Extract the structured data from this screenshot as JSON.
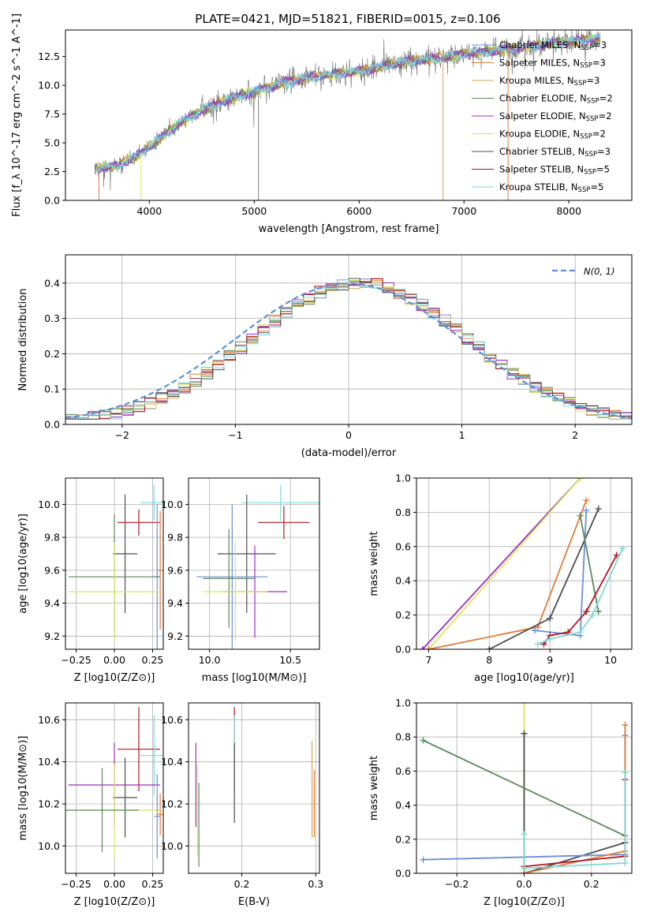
{
  "figure_title": "PLATE=0421, MJD=51821, FIBERID=0015, z=0.106",
  "colors": {
    "chabrier_miles": "#6a8fd8",
    "salpeter_miles": "#e07b39",
    "kroupa_miles": "#d4a64a",
    "chabrier_elodie": "#5a8a5a",
    "salpeter_elodie": "#a32cc4",
    "kroupa_elodie": "#d8e85a",
    "chabrier_stelib": "#4d4d4d",
    "salpeter_stelib": "#b0171f",
    "kroupa_stelib": "#7fd8d8",
    "data": "#7f7f7f",
    "normal": "#5b8fd8"
  },
  "chart_data": [
    {
      "id": "spectrum",
      "type": "line",
      "title": "PLATE=0421, MJD=51821, FIBERID=0015, z=0.106",
      "xlabel": "wavelength [Angstrom, rest frame]",
      "ylabel": "Flux [f_λ 10^-17 erg cm^-2 s^-1 A^-1]",
      "xlim": [
        3200,
        8600
      ],
      "ylim": [
        0,
        14.8
      ],
      "xticks": [
        4000,
        5000,
        6000,
        7000,
        8000
      ],
      "yticks": [
        0.0,
        2.5,
        5.0,
        7.5,
        10.0,
        12.5
      ],
      "grid": false,
      "legend_position": "top-right",
      "legend": [
        "Chabrier MILES, N_SSP=3",
        "Salpeter MILES, N_SSP=3",
        "Kroupa MILES, N_SSP=3",
        "Chabrier ELODIE, N_SSP=2",
        "Salpeter ELODIE, N_SSP=2",
        "Kroupa ELODIE, N_SSP=2",
        "Chabrier STELIB, N_SSP=3",
        "Salpeter STELIB, N_SSP=5",
        "Kroupa STELIB, N_SSP=5"
      ],
      "continuum_x": [
        3500,
        3700,
        3900,
        4100,
        4300,
        4500,
        4700,
        4900,
        5100,
        5300,
        5500,
        5700,
        5900,
        6100,
        6300,
        6500,
        6700,
        6900,
        7100,
        7300,
        7500,
        7700,
        7900,
        8100,
        8300
      ],
      "continuum_y": [
        2.8,
        3.0,
        4.0,
        5.3,
        6.8,
        7.8,
        8.6,
        9.2,
        9.7,
        10.3,
        10.6,
        10.9,
        11.1,
        11.4,
        11.8,
        12.1,
        12.3,
        12.6,
        12.8,
        13.0,
        13.2,
        13.5,
        13.7,
        13.9,
        14.1
      ]
    },
    {
      "id": "residuals",
      "type": "line",
      "xlabel": "(data-model)/error",
      "ylabel": "Normed distribution",
      "xlim": [
        -2.5,
        2.5
      ],
      "ylim": [
        0,
        0.48
      ],
      "xticks": [
        -2,
        -1,
        0,
        1,
        2
      ],
      "yticks": [
        0.0,
        0.1,
        0.2,
        0.3,
        0.4
      ],
      "grid": true,
      "legend_position": "top-right",
      "legend": [
        "N(0,1)"
      ]
    },
    {
      "id": "age_vs_Z",
      "type": "scatter",
      "xlabel": "Z [log10(Z/Z⊙)]",
      "ylabel": "age [log10(age/yr)]",
      "xlim": [
        -0.32,
        0.32
      ],
      "ylim": [
        9.12,
        10.16
      ],
      "xticks": [
        -0.25,
        0.0,
        0.25
      ],
      "yticks": [
        9.2,
        9.4,
        9.6,
        9.8,
        10.0
      ],
      "grid": true,
      "points": [
        {
          "x": 0.26,
          "y": 10.01,
          "xerr": 0.09,
          "yerr": 0.11,
          "c": "kroupa_stelib"
        },
        {
          "x": 0.16,
          "y": 9.89,
          "xerr": 0.14,
          "yerr": 0.08,
          "c": "salpeter_stelib"
        },
        {
          "x": 0.07,
          "y": 9.7,
          "xerr": 0.08,
          "yerr": 0.36,
          "c": "chabrier_stelib"
        },
        {
          "x": 0.28,
          "y": 9.56,
          "xerr": 0.02,
          "yerr": 0.44,
          "c": "chabrier_miles"
        },
        {
          "x": 0.3,
          "y": 9.6,
          "xerr": 0.02,
          "yerr": 0.36,
          "c": "salpeter_miles"
        },
        {
          "x": 0.0,
          "y": 9.56,
          "xerr": 0.3,
          "yerr": 0.38,
          "c": "chabrier_elodie"
        },
        {
          "x": 0.0,
          "y": 9.47,
          "xerr": 0.3,
          "yerr": 0.3,
          "c": "kroupa_elodie"
        }
      ]
    },
    {
      "id": "age_vs_mass",
      "type": "scatter",
      "xlabel": "mass [log10(M/M⊙)]",
      "ylabel": "",
      "xlim": [
        9.87,
        10.68
      ],
      "ylim": [
        9.12,
        10.16
      ],
      "xticks": [
        10.0,
        10.5
      ],
      "yticks": [
        9.2,
        9.4,
        9.6,
        9.8,
        10.0
      ],
      "grid": true,
      "points": [
        {
          "x": 10.44,
          "y": 10.01,
          "xerr": 0.24,
          "yerr": 0.11,
          "c": "kroupa_stelib"
        },
        {
          "x": 10.46,
          "y": 9.89,
          "xerr": 0.16,
          "yerr": 0.1,
          "c": "salpeter_stelib"
        },
        {
          "x": 10.23,
          "y": 9.7,
          "xerr": 0.18,
          "yerr": 0.36,
          "c": "chabrier_stelib"
        },
        {
          "x": 10.14,
          "y": 9.56,
          "xerr": 0.22,
          "yerr": 0.44,
          "c": "chabrier_miles"
        },
        {
          "x": 10.12,
          "y": 9.55,
          "xerr": 0.16,
          "yerr": 0.3,
          "c": "chabrier_elodie"
        },
        {
          "x": 10.28,
          "y": 9.47,
          "xerr": 0.2,
          "yerr": 0.28,
          "c": "salpeter_elodie"
        },
        {
          "x": 10.16,
          "y": 9.47,
          "xerr": 0.2,
          "yerr": 0.3,
          "c": "kroupa_elodie"
        }
      ]
    },
    {
      "id": "weight_vs_age",
      "type": "line",
      "xlabel": "age [log10(age/yr)]",
      "ylabel": "mass weight",
      "xlim": [
        6.8,
        10.35
      ],
      "ylim": [
        0,
        1.0
      ],
      "xticks": [
        7,
        8,
        9,
        10
      ],
      "yticks": [
        0.0,
        0.2,
        0.4,
        0.6,
        0.8,
        1.0
      ],
      "grid": true,
      "series": [
        {
          "c": "salpeter_elodie",
          "x": [
            6.9,
            9.5
          ],
          "y": [
            0.0,
            1.0
          ]
        },
        {
          "c": "kroupa_elodie",
          "x": [
            7.0,
            9.5
          ],
          "y": [
            0.0,
            1.0
          ]
        },
        {
          "c": "salpeter_miles",
          "x": [
            7.0,
            8.8,
            9.6
          ],
          "y": [
            0.0,
            0.13,
            0.87
          ]
        },
        {
          "c": "chabrier_stelib",
          "x": [
            8.0,
            9.0,
            9.8
          ],
          "y": [
            0.0,
            0.18,
            0.82
          ]
        },
        {
          "c": "chabrier_miles",
          "x": [
            8.75,
            9.5,
            9.6
          ],
          "y": [
            0.11,
            0.08,
            0.81
          ]
        },
        {
          "c": "chabrier_elodie",
          "x": [
            9.5,
            9.8
          ],
          "y": [
            0.78,
            0.22
          ]
        },
        {
          "c": "salpeter_stelib",
          "x": [
            8.9,
            9.0,
            9.3,
            9.6,
            10.1
          ],
          "y": [
            0.03,
            0.08,
            0.1,
            0.22,
            0.55
          ]
        },
        {
          "c": "kroupa_stelib",
          "x": [
            8.8,
            9.0,
            9.5,
            9.7,
            10.2
          ],
          "y": [
            0.03,
            0.06,
            0.1,
            0.2,
            0.59
          ]
        }
      ]
    },
    {
      "id": "mass_vs_Z",
      "type": "scatter",
      "xlabel": "Z [log10(Z/Z⊙)]",
      "ylabel": "mass [log10(M/M⊙)]",
      "xlim": [
        -0.32,
        0.32
      ],
      "ylim": [
        9.87,
        10.68
      ],
      "xticks": [
        -0.25,
        0.0,
        0.25
      ],
      "yticks": [
        10.0,
        10.2,
        10.4,
        10.6
      ],
      "grid": true,
      "points": [
        {
          "x": 0.16,
          "y": 10.46,
          "xerr": 0.14,
          "yerr": 0.2,
          "c": "salpeter_stelib"
        },
        {
          "x": 0.26,
          "y": 10.43,
          "xerr": 0.1,
          "yerr": 0.19,
          "c": "kroupa_stelib"
        },
        {
          "x": 0.0,
          "y": 10.29,
          "xerr": 0.3,
          "yerr": 0.2,
          "c": "salpeter_elodie"
        },
        {
          "x": 0.07,
          "y": 10.23,
          "xerr": 0.08,
          "yerr": 0.19,
          "c": "chabrier_stelib"
        },
        {
          "x": 0.0,
          "y": 10.17,
          "xerr": 0.3,
          "yerr": 0.22,
          "c": "kroupa_elodie"
        },
        {
          "x": -0.08,
          "y": 10.17,
          "xerr": 0.24,
          "yerr": 0.2,
          "c": "chabrier_elodie"
        },
        {
          "x": 0.28,
          "y": 10.14,
          "xerr": 0.02,
          "yerr": 0.2,
          "c": "chabrier_miles"
        },
        {
          "x": 0.3,
          "y": 10.15,
          "xerr": 0.02,
          "yerr": 0.1,
          "c": "salpeter_miles"
        }
      ]
    },
    {
      "id": "mass_vs_ebv",
      "type": "scatter",
      "xlabel": "E(B-V)",
      "ylabel": "",
      "xlim": [
        0.128,
        0.305
      ],
      "ylim": [
        9.87,
        10.68
      ],
      "xticks": [
        0.2,
        0.3
      ],
      "yticks": [
        10.0,
        10.2,
        10.4,
        10.6
      ],
      "grid": true,
      "points": [
        {
          "x": 0.19,
          "y": 10.46,
          "xerr": 0.0,
          "yerr": 0.2,
          "c": "salpeter_stelib"
        },
        {
          "x": 0.19,
          "y": 10.43,
          "xerr": 0.0,
          "yerr": 0.19,
          "c": "kroupa_stelib"
        },
        {
          "x": 0.19,
          "y": 10.3,
          "xerr": 0.0,
          "yerr": 0.19,
          "c": "chabrier_stelib"
        },
        {
          "x": 0.138,
          "y": 10.29,
          "xerr": 0.0,
          "yerr": 0.2,
          "c": "salpeter_elodie"
        },
        {
          "x": 0.14,
          "y": 10.17,
          "xerr": 0.0,
          "yerr": 0.22,
          "c": "kroupa_elodie"
        },
        {
          "x": 0.142,
          "y": 10.1,
          "xerr": 0.0,
          "yerr": 0.2,
          "c": "chabrier_elodie"
        },
        {
          "x": 0.295,
          "y": 10.27,
          "xerr": 0.0,
          "yerr": 0.23,
          "c": "kroupa_miles"
        },
        {
          "x": 0.298,
          "y": 10.2,
          "xerr": 0.0,
          "yerr": 0.16,
          "c": "salpeter_miles"
        }
      ]
    },
    {
      "id": "weight_vs_Z",
      "type": "line",
      "xlabel": "Z [log10(Z/Z⊙)]",
      "ylabel": "mass weight",
      "xlim": [
        -0.32,
        0.32
      ],
      "ylim": [
        0,
        1.0
      ],
      "xticks": [
        -0.2,
        0.0,
        0.2
      ],
      "yticks": [
        0.0,
        0.2,
        0.4,
        0.6,
        0.8,
        1.0
      ],
      "grid": true,
      "series": [
        {
          "c": "kroupa_elodie",
          "x": [
            0.0,
            0.0
          ],
          "y": [
            0.0,
            1.0
          ]
        },
        {
          "c": "chabrier_stelib",
          "x": [
            0.0,
            0.0,
            0.3
          ],
          "y": [
            0.82,
            0.0,
            0.18
          ]
        },
        {
          "c": "chabrier_elodie",
          "x": [
            -0.3,
            0.3
          ],
          "y": [
            0.78,
            0.22
          ]
        },
        {
          "c": "chabrier_miles",
          "x": [
            -0.3,
            0.3,
            0.3
          ],
          "y": [
            0.08,
            0.11,
            0.81
          ]
        },
        {
          "c": "salpeter_miles",
          "x": [
            0.0,
            0.3,
            0.3
          ],
          "y": [
            0.0,
            0.13,
            0.87
          ]
        },
        {
          "c": "salpeter_stelib",
          "x": [
            0.0,
            0.3,
            0.3
          ],
          "y": [
            0.04,
            0.1,
            0.55
          ]
        },
        {
          "c": "kroupa_stelib",
          "x": [
            0.0,
            0.0,
            0.3,
            0.3
          ],
          "y": [
            0.23,
            0.03,
            0.06,
            0.59
          ]
        }
      ]
    }
  ]
}
